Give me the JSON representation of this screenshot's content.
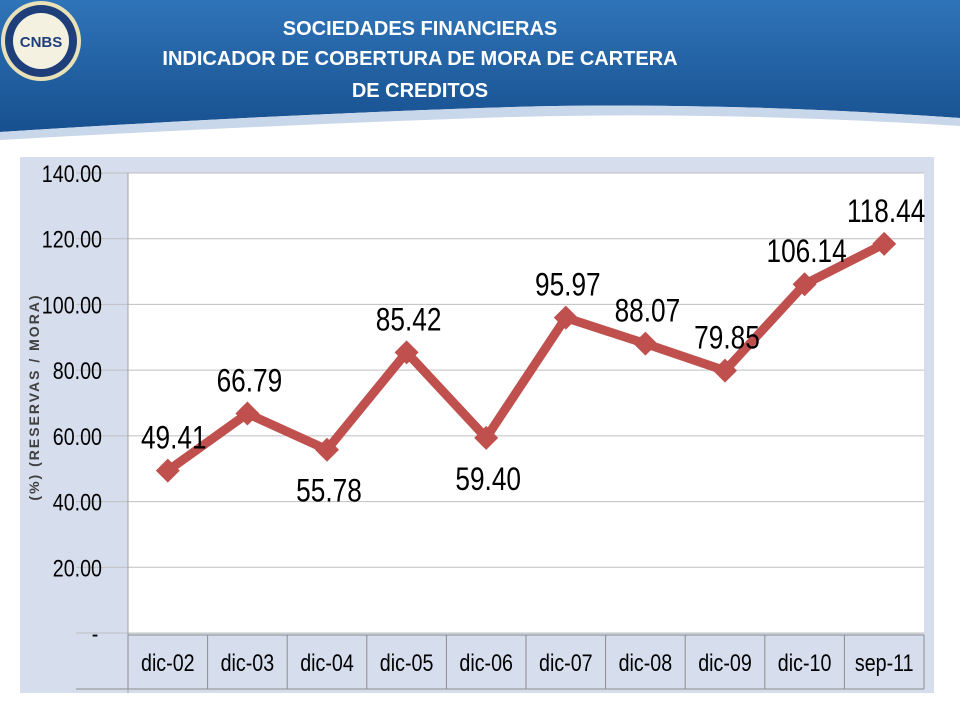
{
  "header": {
    "title_lines": [
      "SOCIEDADES FINANCIERAS",
      "INDICADOR DE COBERTURA DE MORA DE CARTERA",
      "DE CREDITOS"
    ],
    "logo_text": "CNBS"
  },
  "colors": {
    "header_blue": "#1f5fa3",
    "line": "#c0504d",
    "panel": "#d6deee"
  },
  "chart_data": {
    "type": "line",
    "title": "SOCIEDADES FINANCIERAS INDICADOR DE COBERTURA DE MORA DE CARTERA DE CREDITOS",
    "ylabel": "(%) (RESERVAS / MORA)",
    "xlabel": "",
    "ylim": [
      0,
      140
    ],
    "y_ticks": [
      "-",
      "20.00",
      "40.00",
      "60.00",
      "80.00",
      "100.00",
      "120.00",
      "140.00"
    ],
    "grid": true,
    "categories": [
      "dic-02",
      "dic-03",
      "dic-04",
      "dic-05",
      "dic-06",
      "dic-07",
      "dic-08",
      "dic-09",
      "dic-10",
      "sep-11"
    ],
    "values": [
      49.41,
      66.79,
      55.78,
      85.42,
      59.4,
      95.97,
      88.07,
      79.85,
      106.14,
      118.44
    ],
    "data_labels": [
      "49.41",
      "66.79",
      "55.78",
      "85.42",
      "59.40",
      "95.97",
      "88.07",
      "79.85",
      "106.14",
      "118.44"
    ]
  }
}
